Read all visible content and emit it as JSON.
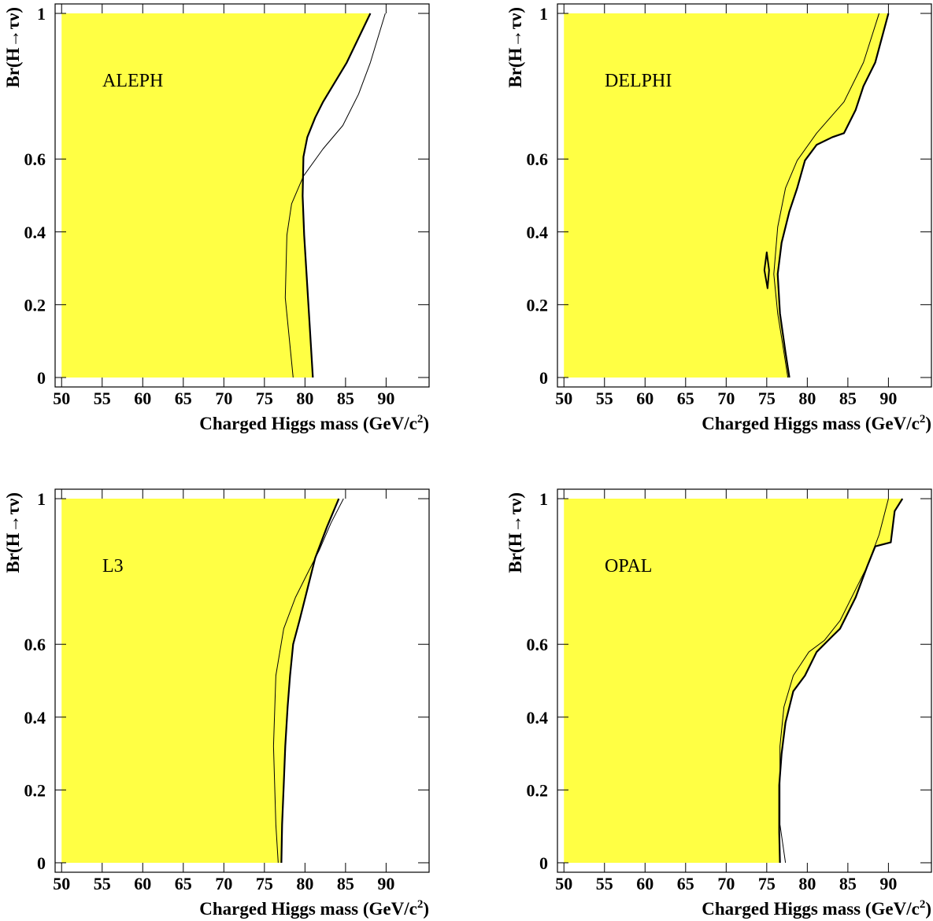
{
  "chart_data": [
    {
      "type": "contour",
      "annotation": "ALEPH",
      "y_label": "Br(H→τν)",
      "x_label": {
        "text": "Charged Higgs mass (GeV/c",
        "sup": "2",
        "end": ")"
      },
      "xlim": [
        49.2,
        95.3
      ],
      "ylim": [
        -0.026,
        1.026
      ],
      "xticks": [
        50,
        55,
        60,
        65,
        70,
        75,
        80,
        85,
        90
      ],
      "yticks": [
        0,
        0.2,
        0.4,
        0.6,
        1
      ],
      "series": [
        {
          "color": "#000000",
          "width": 2.2,
          "fill": "#ffff44",
          "fill_to": 50,
          "x": [
            88.06,
            85.15,
            82.23,
            81.26,
            80.29,
            79.81,
            79.71,
            79.9,
            80.49,
            80.97
          ],
          "y": [
            1.0,
            0.865,
            0.757,
            0.714,
            0.66,
            0.606,
            0.499,
            0.391,
            0.176,
            0
          ]
        },
        {
          "color": "#000000",
          "width": 1,
          "x": [
            89.9,
            88.06,
            86.6,
            84.66,
            82.23,
            79.81,
            78.35,
            77.77,
            77.57,
            78.54
          ],
          "y": [
            1.0,
            0.865,
            0.778,
            0.692,
            0.628,
            0.553,
            0.477,
            0.391,
            0.219,
            0
          ]
        }
      ]
    },
    {
      "type": "contour",
      "annotation": "DELPHI",
      "y_label": "Br(H→τν)",
      "x_label": {
        "text": "Charged Higgs mass (GeV/c",
        "sup": "2",
        "end": ")"
      },
      "xlim": [
        49.2,
        95.3
      ],
      "ylim": [
        -0.026,
        1.026
      ],
      "xticks": [
        50,
        55,
        60,
        65,
        70,
        75,
        80,
        85,
        90
      ],
      "yticks": [
        0,
        0.2,
        0.4,
        0.6,
        1
      ],
      "series": [
        {
          "color": "#000000",
          "width": 2.2,
          "fill": "#ffff44",
          "fill_to": 50,
          "x": [
            90.0,
            88.37,
            86.92,
            85.96,
            84.52,
            83.08,
            81.15,
            79.71,
            78.75,
            77.79,
            76.83,
            76.35,
            76.63,
            77.31,
            77.79
          ],
          "y": [
            1.0,
            0.865,
            0.8,
            0.735,
            0.671,
            0.66,
            0.639,
            0.596,
            0.52,
            0.456,
            0.37,
            0.284,
            0.176,
            0.069,
            0
          ]
        },
        {
          "color": "#000000",
          "width": 1,
          "x": [
            88.85,
            86.92,
            84.52,
            81.15,
            78.75,
            77.31,
            76.35,
            75.87,
            76.35,
            77.12,
            77.6
          ],
          "y": [
            1.0,
            0.865,
            0.757,
            0.671,
            0.596,
            0.52,
            0.413,
            0.284,
            0.176,
            0.069,
            0
          ]
        },
        {
          "color": "#000000",
          "width": 2,
          "closed": true,
          "x": [
            75.0,
            75.29,
            75.1,
            74.71
          ],
          "y": [
            0.344,
            0.295,
            0.245,
            0.295
          ]
        }
      ]
    },
    {
      "type": "contour",
      "annotation": "L3",
      "y_label": "Br(H→τν)",
      "x_label": {
        "text": "Charged Higgs mass (GeV/c",
        "sup": "2",
        "end": ")"
      },
      "xlim": [
        49.2,
        95.3
      ],
      "ylim": [
        -0.026,
        1.026
      ],
      "xticks": [
        50,
        55,
        60,
        65,
        70,
        75,
        80,
        85,
        90
      ],
      "yticks": [
        0,
        0.2,
        0.4,
        0.6,
        1
      ],
      "series": [
        {
          "color": "#000000",
          "width": 2.2,
          "fill": "#ffff44",
          "fill_to": 50,
          "x": [
            84.17,
            82.72,
            81.26,
            80.29,
            79.32,
            78.54,
            78.16,
            77.86,
            77.57,
            77.38,
            77.18,
            77.09
          ],
          "y": [
            1.0,
            0.923,
            0.837,
            0.751,
            0.665,
            0.6,
            0.514,
            0.428,
            0.32,
            0.213,
            0.105,
            0
          ]
        },
        {
          "color": "#000000",
          "width": 1,
          "x": [
            84.75,
            83.2,
            81.75,
            80.29,
            78.83,
            77.38,
            76.41,
            76.12,
            76.41,
            76.7
          ],
          "y": [
            1.0,
            0.933,
            0.858,
            0.794,
            0.729,
            0.643,
            0.514,
            0.32,
            0.105,
            0
          ]
        }
      ]
    },
    {
      "type": "contour",
      "annotation": "OPAL",
      "y_label": "Br(H→τν)",
      "x_label": {
        "text": "Charged Higgs mass (GeV/c",
        "sup": "2",
        "end": ")"
      },
      "xlim": [
        49.2,
        95.3
      ],
      "ylim": [
        -0.026,
        1.026
      ],
      "xticks": [
        50,
        55,
        60,
        65,
        70,
        75,
        80,
        85,
        90
      ],
      "yticks": [
        0,
        0.2,
        0.4,
        0.6,
        1
      ],
      "series": [
        {
          "color": "#000000",
          "width": 2.2,
          "fill": "#ffff44",
          "fill_to": 50,
          "x": [
            91.73,
            90.77,
            90.29,
            88.37,
            87.4,
            85.96,
            85.0,
            84.04,
            83.08,
            81.15,
            79.71,
            78.27,
            77.31,
            76.83,
            76.54,
            76.54,
            76.63
          ],
          "y": [
            1.0,
            0.966,
            0.88,
            0.869,
            0.815,
            0.729,
            0.686,
            0.643,
            0.622,
            0.579,
            0.514,
            0.471,
            0.385,
            0.299,
            0.213,
            0.084,
            0
          ]
        },
        {
          "color": "#000000",
          "width": 1,
          "x": [
            90.0,
            88.85,
            87.4,
            85.96,
            84.04,
            82.12,
            80.19,
            78.27,
            77.12,
            76.63,
            76.63,
            77.31
          ],
          "y": [
            1.0,
            0.901,
            0.815,
            0.751,
            0.665,
            0.611,
            0.579,
            0.514,
            0.428,
            0.32,
            0.105,
            0
          ]
        }
      ]
    }
  ]
}
